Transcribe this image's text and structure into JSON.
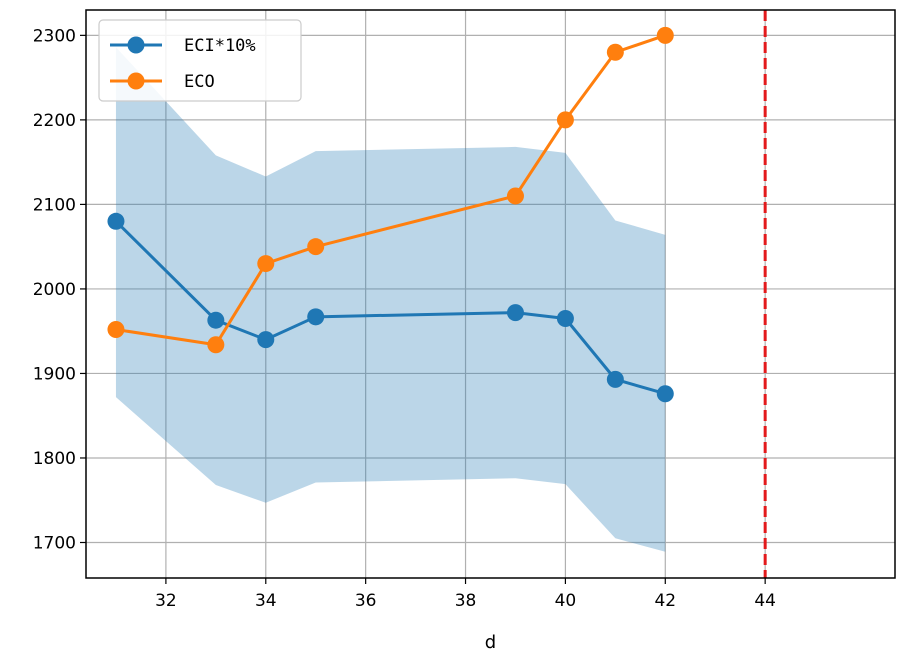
{
  "chart_data": {
    "type": "line",
    "title": "",
    "xlabel": "d",
    "ylabel": "",
    "xlim": [
      30.4,
      46.6
    ],
    "ylim": [
      1658,
      2330
    ],
    "xticks": [
      32,
      34,
      36,
      38,
      40,
      42,
      44
    ],
    "yticks": [
      1700,
      1800,
      1900,
      2000,
      2100,
      2200,
      2300
    ],
    "grid": true,
    "legend_position": "top-left",
    "x": [
      31,
      33,
      34,
      35,
      39,
      40,
      41,
      42
    ],
    "series": [
      {
        "name": "ECI*10%",
        "color": "#1f77b4",
        "marker": "circle",
        "values": [
          2080,
          1963,
          1940,
          1967,
          1972,
          1965,
          1893,
          1876
        ]
      },
      {
        "name": "ECO",
        "color": "#ff7f0e",
        "marker": "circle",
        "values": [
          1952,
          1934,
          2030,
          2050,
          2110,
          2200,
          2280,
          2300
        ]
      }
    ],
    "band": {
      "series": "ECI*10%",
      "color": "#1f77b4",
      "opacity": 0.3,
      "lower": [
        1872,
        1768,
        1747,
        1771,
        1776,
        1769,
        1705,
        1689
      ],
      "upper": [
        2286,
        2158,
        2133,
        2163,
        2168,
        2161,
        2081,
        2064
      ]
    },
    "vline": {
      "x": 44,
      "color": "#e31a1c",
      "style": "dashed"
    }
  }
}
